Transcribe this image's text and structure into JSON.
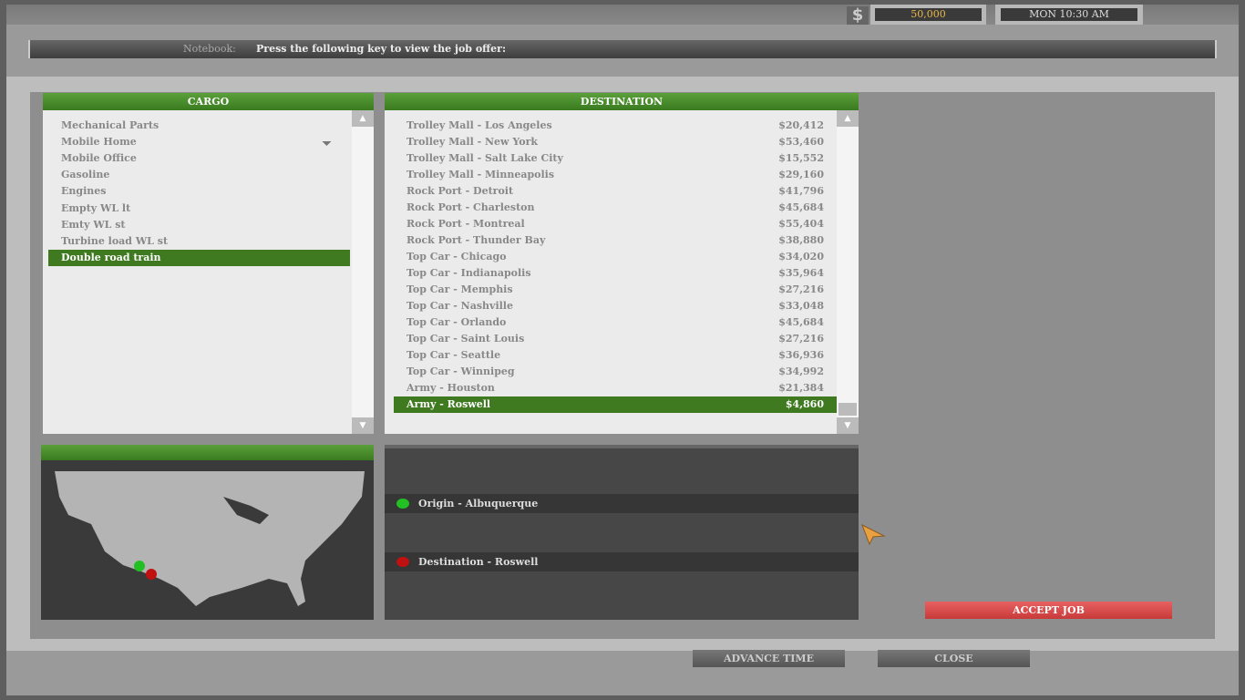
{
  "topbar": {
    "money": "50,000",
    "clock": "MON 10:30 AM",
    "currency_icon": "$"
  },
  "notebook": {
    "label": "Notebook:",
    "text": "Press the following key to view the job offer:"
  },
  "cargo": {
    "title": "CARGO",
    "items": [
      "Mechanical Parts",
      "Mobile Home",
      "Mobile Office",
      "Gasoline",
      "Engines",
      "Empty WL lt",
      "Emty WL st",
      "Turbine load WL st",
      "Double road train"
    ],
    "selected": 8
  },
  "destination": {
    "title": "DESTINATION",
    "items": [
      {
        "name": "Trolley Mall - Los Angeles",
        "price": "$20,412"
      },
      {
        "name": "Trolley Mall - New York",
        "price": "$53,460"
      },
      {
        "name": "Trolley Mall - Salt Lake City",
        "price": "$15,552"
      },
      {
        "name": "Trolley Mall - Minneapolis",
        "price": "$29,160"
      },
      {
        "name": "Rock Port - Detroit",
        "price": "$41,796"
      },
      {
        "name": "Rock Port - Charleston",
        "price": "$45,684"
      },
      {
        "name": "Rock Port - Montreal",
        "price": "$55,404"
      },
      {
        "name": "Rock Port - Thunder Bay",
        "price": "$38,880"
      },
      {
        "name": "Top Car - Chicago",
        "price": "$34,020"
      },
      {
        "name": "Top Car - Indianapolis",
        "price": "$35,964"
      },
      {
        "name": "Top Car - Memphis",
        "price": "$27,216"
      },
      {
        "name": "Top Car - Nashville",
        "price": "$33,048"
      },
      {
        "name": "Top Car - Orlando",
        "price": "$45,684"
      },
      {
        "name": "Top Car - Saint Louis",
        "price": "$27,216"
      },
      {
        "name": "Top Car - Seattle",
        "price": "$36,936"
      },
      {
        "name": "Top Car - Winnipeg",
        "price": "$34,992"
      },
      {
        "name": "Army - Houston",
        "price": "$21,384"
      },
      {
        "name": "Army - Roswell",
        "price": "$4,860"
      }
    ],
    "selected": 17
  },
  "route": {
    "origin": "Origin - Albuquerque",
    "destination": "Destination - Roswell",
    "origin_color": "#22c022",
    "destination_color": "#c01010"
  },
  "buttons": {
    "accept": "ACCEPT JOB",
    "advance": "ADVANCE TIME",
    "close": "CLOSE"
  }
}
